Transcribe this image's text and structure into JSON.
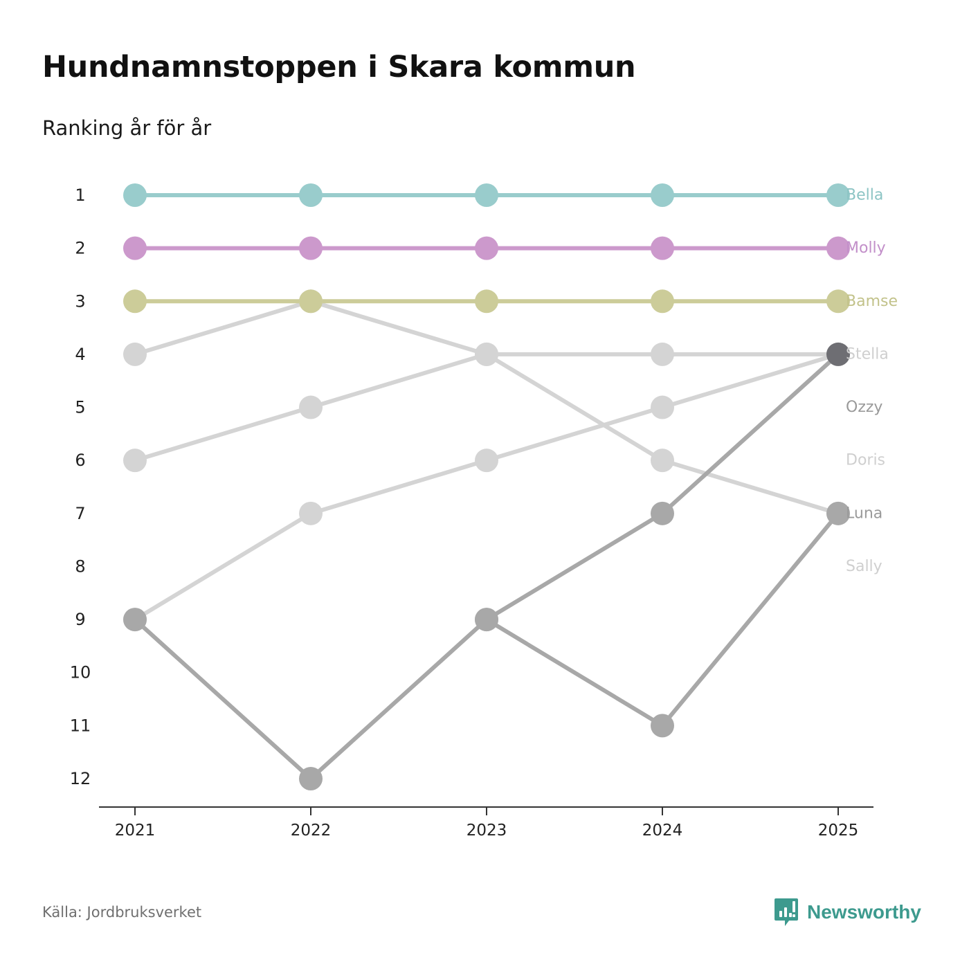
{
  "title": "Hundnamnstoppen i Skara kommun",
  "subtitle": "Ranking år för år",
  "source": "Källa: Jordbruksverket",
  "brand": {
    "name": "Newsworthy",
    "icon": "newsworthy-logo-icon",
    "color": "#3d9a8e"
  },
  "chart_data": {
    "type": "line",
    "subtype": "bump",
    "title": "Hundnamnstoppen i Skara kommun",
    "subtitle": "Ranking år för år",
    "xlabel": "",
    "ylabel": "",
    "x": [
      "2021",
      "2022",
      "2023",
      "2024",
      "2025"
    ],
    "y_ticks": [
      "1",
      "2",
      "3",
      "4",
      "5",
      "6",
      "7",
      "8",
      "9",
      "10",
      "11",
      "12"
    ],
    "ylim": [
      1,
      12
    ],
    "y_inverted": true,
    "grid": false,
    "series": [
      {
        "name": "Doris",
        "values": [
          4,
          3,
          4,
          6,
          7
        ],
        "color": "#d4d4d4",
        "label_color": "#cfcfcf",
        "end_rank": 6
      },
      {
        "name": "Sally",
        "values": [
          9,
          7,
          6,
          5,
          4
        ],
        "color": "#d4d4d4",
        "label_color": "#cfcfcf",
        "end_rank": 8
      },
      {
        "name": "Stella",
        "values": [
          6,
          5,
          4,
          4,
          4
        ],
        "color": "#d4d4d4",
        "label_color": "#cfcfcf",
        "end_rank": 4
      },
      {
        "name": "Luna",
        "values": [
          9,
          12,
          9,
          11,
          7
        ],
        "color": "#a8a8a8",
        "label_color": "#9a9a9a",
        "end_rank": 7
      },
      {
        "name": "Ozzy",
        "values": [
          null,
          null,
          9,
          7,
          4
        ],
        "color": "#a8a8a8",
        "label_color": "#9a9a9a",
        "end_rank": 5,
        "end_marker_color": "#6e6e73"
      },
      {
        "name": "Bamse",
        "values": [
          3,
          3,
          3,
          3,
          3
        ],
        "color": "#cccc99",
        "label_color": "#c2c28a",
        "end_rank": 3
      },
      {
        "name": "Molly",
        "values": [
          2,
          2,
          2,
          2,
          2
        ],
        "color": "#cc99cc",
        "label_color": "#c28fc9",
        "end_rank": 2
      },
      {
        "name": "Bella",
        "values": [
          1,
          1,
          1,
          1,
          1
        ],
        "color": "#99cccc",
        "label_color": "#8cc4c4",
        "end_rank": 1
      }
    ]
  }
}
